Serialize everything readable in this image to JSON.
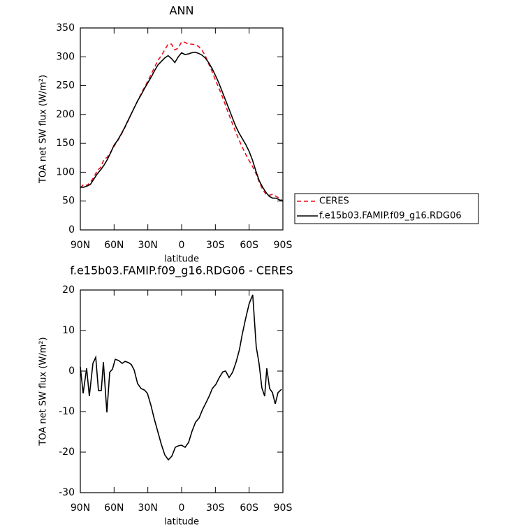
{
  "chart_data": [
    {
      "type": "line",
      "title": "ANN",
      "xlabel": "latitude",
      "ylabel": "TOA net SW flux (W/m²)",
      "x": [
        90,
        87,
        84,
        81,
        78,
        75,
        72,
        69,
        66,
        63,
        60,
        57,
        54,
        51,
        48,
        45,
        42,
        39,
        36,
        33,
        30,
        27,
        24,
        21,
        18,
        15,
        12,
        9,
        6,
        3,
        0,
        -3,
        -6,
        -9,
        -12,
        -15,
        -18,
        -21,
        -24,
        -27,
        -30,
        -33,
        -36,
        -39,
        -42,
        -45,
        -48,
        -51,
        -54,
        -57,
        -60,
        -63,
        -66,
        -69,
        -72,
        -75,
        -78,
        -81,
        -84,
        -87,
        -90
      ],
      "series": [
        {
          "name": "CERES",
          "color": "#e8101a",
          "dashed": true,
          "values": [
            73,
            79,
            77,
            83,
            91,
            103,
            108,
            122,
            126,
            135,
            145,
            154,
            164,
            175,
            187,
            200,
            212,
            224,
            236,
            247,
            258,
            270,
            282,
            294,
            302,
            312,
            322,
            322,
            312,
            315,
            326,
            325,
            322,
            322,
            321,
            318,
            312,
            302,
            288,
            275,
            260,
            246,
            232,
            216,
            200,
            185,
            170,
            156,
            143,
            131,
            120,
            110,
            98,
            83,
            70,
            62,
            60,
            62,
            58,
            55,
            50
          ]
        },
        {
          "name": "f.e15b03.FAMIP.f09_g16.RDG06",
          "color": "#000000",
          "dashed": false,
          "values": [
            74,
            74,
            76,
            79,
            88,
            97,
            104,
            112,
            122,
            134,
            147,
            155,
            165,
            176,
            188,
            200,
            212,
            224,
            234,
            245,
            255,
            265,
            276,
            286,
            292,
            298,
            302,
            297,
            290,
            300,
            307,
            304,
            305,
            307,
            308,
            306,
            303,
            298,
            290,
            280,
            268,
            255,
            240,
            225,
            210,
            195,
            180,
            168,
            158,
            148,
            136,
            121,
            102,
            85,
            74,
            65,
            58,
            55,
            55,
            52,
            50
          ]
        }
      ],
      "xlim": [
        90,
        -90
      ],
      "xticks": [
        {
          "value": 90,
          "label": "90N"
        },
        {
          "value": 60,
          "label": "60N"
        },
        {
          "value": 30,
          "label": "30N"
        },
        0,
        {
          "value": -30,
          "label": "30S"
        },
        {
          "value": -60,
          "label": "60S"
        },
        {
          "value": -90,
          "label": "90S"
        }
      ],
      "ylim": [
        0,
        350
      ],
      "yticks": [
        0,
        50,
        100,
        150,
        200,
        250,
        300,
        350
      ]
    },
    {
      "type": "line",
      "title": "f.e15b03.FAMIP.f09_g16.RDG06 - CERES",
      "xlabel": "latitude",
      "ylabel": "TOA net SW flux (W/m²)",
      "x": [
        90,
        87.5,
        84.4,
        82,
        78.8,
        76.3,
        73.9,
        71.4,
        69.5,
        66.4,
        63.9,
        61.4,
        59,
        55.9,
        52.8,
        50.3,
        47.2,
        44.7,
        42.2,
        39.1,
        36,
        32.9,
        30.4,
        27.3,
        24.2,
        21.1,
        18,
        14.9,
        11.8,
        8.7,
        5.6,
        2.5,
        0,
        -3.1,
        -6.2,
        -9.3,
        -12.4,
        -15.5,
        -18.6,
        -21.7,
        -24.8,
        -27.3,
        -30.4,
        -33.5,
        -36.6,
        -39.1,
        -42.2,
        -45.3,
        -48.4,
        -51.4,
        -53.9,
        -57,
        -60.1,
        -63.2,
        -66.3,
        -68.8,
        -71.3,
        -73.8,
        -75.7,
        -78.2,
        -80.7,
        -83.2,
        -85.7,
        -88.8
      ],
      "values": [
        1.0,
        -5.5,
        0.7,
        -6.2,
        1.9,
        3.4,
        -4.8,
        -4.8,
        2.2,
        -10.2,
        -0.3,
        0.5,
        2.9,
        2.6,
        1.9,
        2.4,
        2.1,
        1.6,
        0.3,
        -3.1,
        -4.3,
        -4.7,
        -5.5,
        -8.4,
        -11.9,
        -15,
        -18.1,
        -20.7,
        -21.9,
        -21,
        -18.8,
        -18.4,
        -18.3,
        -18.8,
        -17.6,
        -14.8,
        -12.6,
        -11.6,
        -9.5,
        -7.8,
        -6,
        -4.3,
        -3.3,
        -1.6,
        -0.2,
        0,
        -1.6,
        -0.3,
        2.2,
        5.3,
        9.1,
        13.1,
        16.7,
        18.8,
        6,
        1.9,
        -4.1,
        -6.2,
        0.7,
        -4.3,
        -5.3,
        -8.1,
        -5.3,
        -4.5
      ],
      "color": "#000000",
      "xlim": [
        90,
        -90
      ],
      "xticks": [
        {
          "value": 90,
          "label": "90N"
        },
        {
          "value": 60,
          "label": "60N"
        },
        {
          "value": 30,
          "label": "30N"
        },
        0,
        {
          "value": -30,
          "label": "30S"
        },
        {
          "value": -60,
          "label": "60S"
        },
        {
          "value": -90,
          "label": "90S"
        }
      ],
      "ylim": [
        -30,
        20
      ],
      "yticks": [
        -30,
        -20,
        -10,
        0,
        10,
        20
      ]
    }
  ]
}
